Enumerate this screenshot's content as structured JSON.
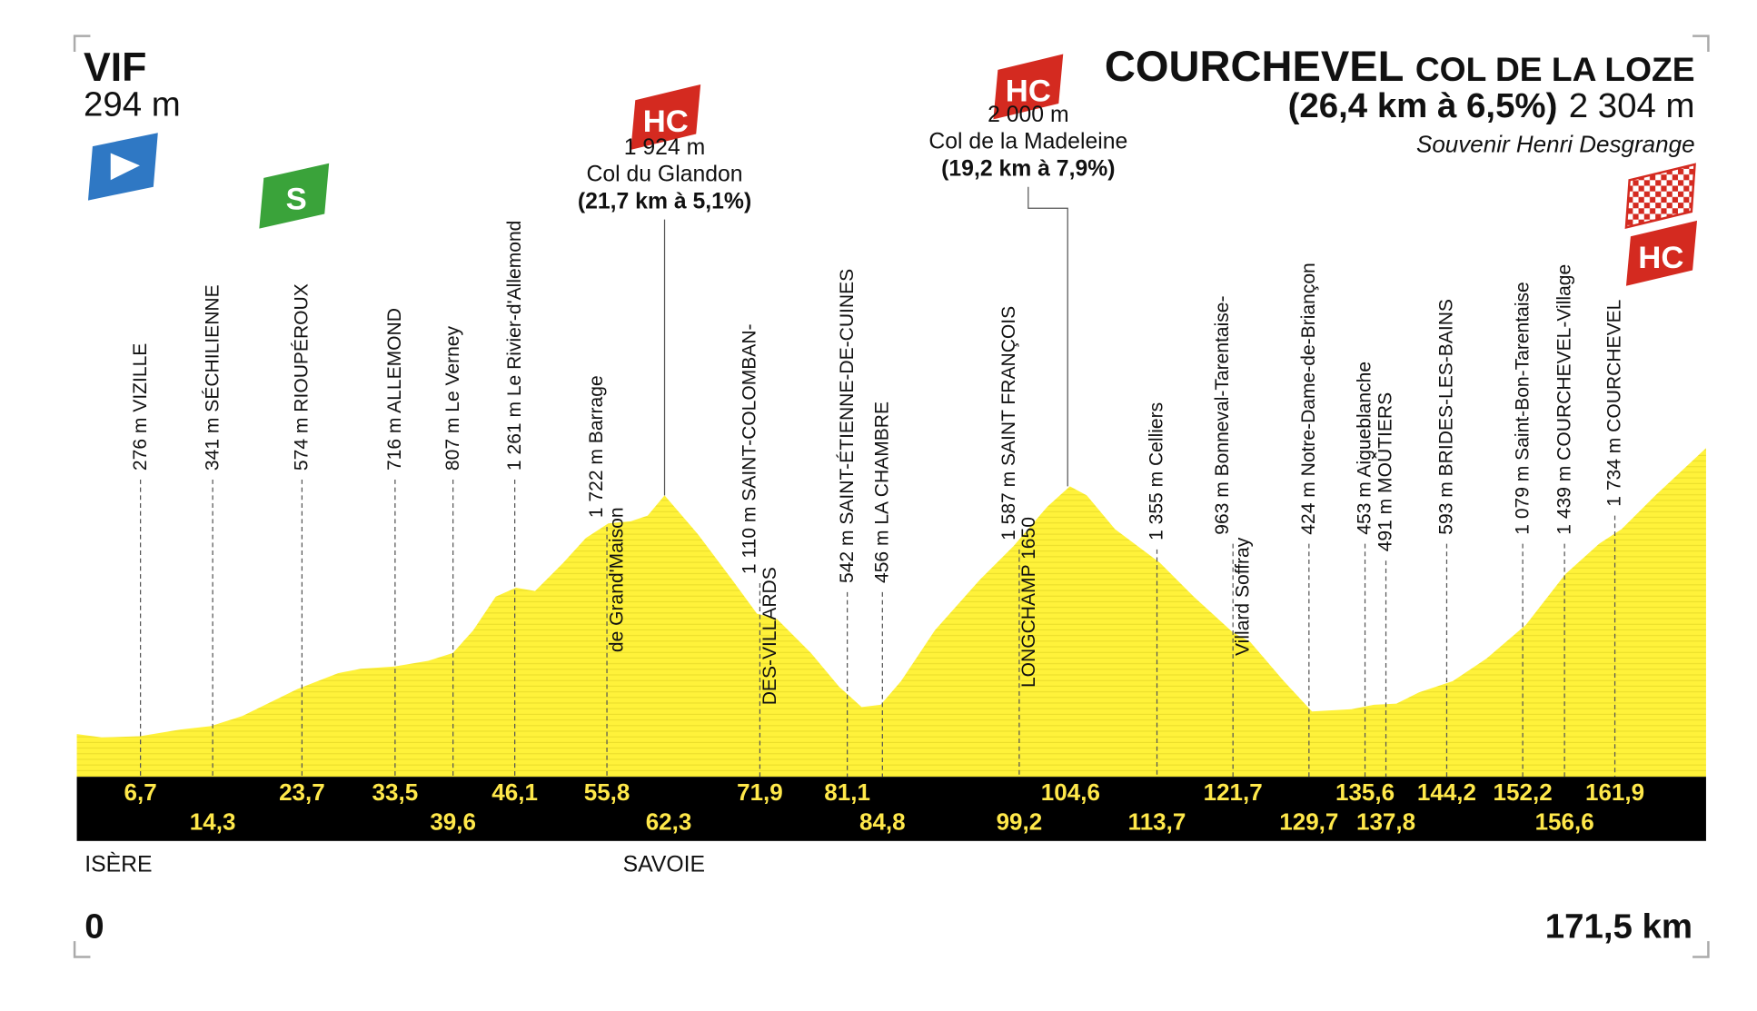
{
  "header": {
    "start": {
      "name": "VIF",
      "altitude": "294 m"
    },
    "finish": {
      "name": "COURCHEVEL",
      "subtitle": "COL DE LA LOZE",
      "climb": "(26,4 km à 6,5%)",
      "altitude": "2 304 m",
      "souvenir": "Souvenir Henri Desgrange"
    }
  },
  "badges": {
    "sprint": "S",
    "finish_category": "HC"
  },
  "climbs": [
    {
      "badge": "HC",
      "altitude": "1 924 m",
      "name": "Col du Glandon",
      "detail": "(21,7 km à 5,1%)"
    },
    {
      "badge": "HC",
      "altitude": "2 000 m",
      "name": "Col de la Madeleine",
      "detail": "(19,2 km à 7,9%)"
    }
  ],
  "waypoints": [
    {
      "km": "6,7",
      "label": [
        "276 m VIZILLE"
      ]
    },
    {
      "km": "14,3",
      "label": [
        "341 m SÉCHILIENNE"
      ]
    },
    {
      "km": "23,7",
      "label": [
        "574 m RIOUPÉROUX"
      ]
    },
    {
      "km": "33,5",
      "label": [
        "716 m ALLEMOND"
      ]
    },
    {
      "km": "39,6",
      "label": [
        "807 m Le Verney"
      ]
    },
    {
      "km": "46,1",
      "label": [
        "1 261 m Le Rivier-d'Allemond"
      ]
    },
    {
      "km": "55,8",
      "label": [
        "1 722 m Barrage",
        "de Grand'Maison"
      ]
    },
    {
      "km": "62,3"
    },
    {
      "km": "71,9",
      "label": [
        "1 110 m SAINT-COLOMBAN-",
        "DES-VILLARDS"
      ]
    },
    {
      "km": "81,1",
      "label": [
        "542 m SAINT-ÉTIENNE-DE-CUINES"
      ]
    },
    {
      "km": "84,8",
      "label": [
        "456 m LA CHAMBRE"
      ]
    },
    {
      "km": "99,2",
      "label": [
        "1 587 m SAINT FRANÇOIS",
        "LONGCHAMP 1650"
      ]
    },
    {
      "km": "104,6"
    },
    {
      "km": "113,7",
      "label": [
        "1 355 m Celliers"
      ]
    },
    {
      "km": "121,7",
      "label": [
        "963 m Bonneval-Tarentaise-",
        "Villard Soffray"
      ]
    },
    {
      "km": "129,7",
      "label": [
        "424 m Notre-Dame-de-Briançon"
      ]
    },
    {
      "km": "135,6",
      "label": [
        "453 m Aigueblanche"
      ]
    },
    {
      "km": "137,8",
      "label": [
        "491 m MOÛTIERS"
      ]
    },
    {
      "km": "144,2",
      "label": [
        "593 m BRIDES-LES-BAINS"
      ]
    },
    {
      "km": "152,2",
      "label": [
        "1 079 m Saint-Bon-Tarentaise"
      ]
    },
    {
      "km": "156,6",
      "label": [
        "1 439 m COURCHEVEL-Village"
      ]
    },
    {
      "km": "161,9",
      "label": [
        "1 734 m COURCHEVEL"
      ]
    }
  ],
  "departments": [
    "ISÈRE",
    "SAVOIE"
  ],
  "distance": {
    "start": "0",
    "end": "171,5 km"
  }
}
